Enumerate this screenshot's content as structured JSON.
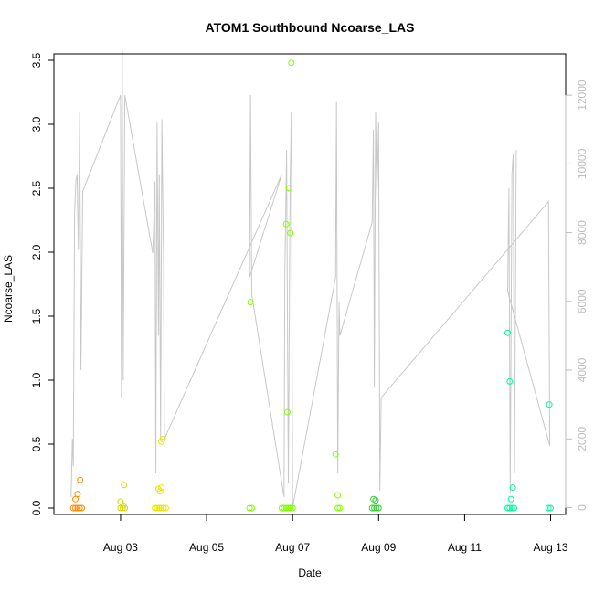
{
  "chart_data": {
    "type": "scatter",
    "title": "ATOM1 Southbound Ncoarse_LAS",
    "xlabel": "Date",
    "ylabel": "Ncoarse_LAS",
    "x_unit": "days in August",
    "xlim": [
      1.45,
      13.35
    ],
    "ylim": [
      -0.05,
      3.55
    ],
    "x_ticks": [
      {
        "value": 3,
        "label": "Aug 03"
      },
      {
        "value": 5,
        "label": "Aug 05"
      },
      {
        "value": 7,
        "label": "Aug 07"
      },
      {
        "value": 9,
        "label": "Aug 09"
      },
      {
        "value": 11,
        "label": "Aug 11"
      },
      {
        "value": 13,
        "label": "Aug 13"
      }
    ],
    "y_ticks": [
      0.0,
      0.5,
      1.0,
      1.5,
      2.0,
      2.5,
      3.0,
      3.5
    ],
    "y_tick_labels": [
      "0.0",
      "0.5",
      "1.0",
      "1.5",
      "2.0",
      "2.5",
      "3.0",
      "3.5"
    ],
    "y2_ticks": [
      0,
      2000,
      4000,
      6000,
      8000,
      10000,
      12000
    ],
    "y2_tick_labels": [
      "0",
      "2000",
      "4000",
      "6000",
      "8000",
      "10000",
      "12000"
    ],
    "y2lim": [
      -200,
      13200
    ],
    "grid": false,
    "series": [
      {
        "color": "#ff8c00",
        "points": [
          [
            1.9,
            0
          ],
          [
            1.95,
            0
          ],
          [
            2.0,
            0
          ],
          [
            2.05,
            0
          ],
          [
            2.1,
            0
          ],
          [
            1.95,
            0.07
          ],
          [
            2.0,
            0.11
          ],
          [
            2.06,
            0.22
          ]
        ]
      },
      {
        "color": "#d9d900",
        "points": [
          [
            3.0,
            0
          ],
          [
            3.05,
            0
          ],
          [
            3.1,
            0
          ],
          [
            3.0,
            0.05
          ],
          [
            3.06,
            0.02
          ],
          [
            3.08,
            0.18
          ]
        ]
      },
      {
        "color": "#e6e600",
        "points": [
          [
            3.8,
            0
          ],
          [
            3.85,
            0
          ],
          [
            3.9,
            0
          ],
          [
            3.95,
            0
          ],
          [
            4.0,
            0
          ],
          [
            4.05,
            0
          ],
          [
            3.88,
            0.15
          ],
          [
            3.92,
            0.13
          ],
          [
            3.95,
            0.16
          ],
          [
            3.95,
            0.52
          ],
          [
            3.98,
            0.54
          ]
        ]
      },
      {
        "color": "#7fff00",
        "points": [
          [
            6.0,
            0
          ],
          [
            6.05,
            0
          ],
          [
            6.02,
            1.61
          ],
          [
            6.75,
            0
          ],
          [
            6.8,
            0
          ],
          [
            6.85,
            0
          ],
          [
            6.9,
            0
          ],
          [
            6.95,
            0
          ],
          [
            7.0,
            0
          ],
          [
            6.85,
            2.22
          ],
          [
            6.92,
            2.5
          ],
          [
            6.95,
            2.15
          ],
          [
            6.88,
            0.75
          ],
          [
            6.97,
            3.48
          ],
          [
            8.0,
            0.42
          ],
          [
            8.05,
            0.1
          ],
          [
            8.05,
            0
          ],
          [
            8.1,
            0
          ]
        ]
      },
      {
        "color": "#32cd32",
        "points": [
          [
            8.85,
            0
          ],
          [
            8.9,
            0
          ],
          [
            8.95,
            0
          ],
          [
            9.0,
            0
          ],
          [
            8.88,
            0.07
          ],
          [
            8.93,
            0.06
          ]
        ]
      },
      {
        "color": "#00fa9a",
        "points": [
          [
            12.0,
            0
          ],
          [
            12.05,
            0
          ],
          [
            12.1,
            0
          ],
          [
            12.15,
            0
          ],
          [
            12.0,
            1.37
          ],
          [
            12.05,
            0.99
          ],
          [
            12.08,
            0.07
          ],
          [
            12.12,
            0.16
          ],
          [
            12.95,
            0
          ],
          [
            13.0,
            0
          ],
          [
            12.97,
            0.81
          ]
        ]
      }
    ],
    "overlay_line": {
      "axis": "right",
      "color": "#c8c8c8",
      "points": [
        [
          1.85,
          300
        ],
        [
          1.88,
          2000
        ],
        [
          1.9,
          1200
        ],
        [
          1.93,
          8500
        ],
        [
          1.96,
          9500
        ],
        [
          1.99,
          9700
        ],
        [
          2.02,
          7500
        ],
        [
          2.05,
          11500
        ],
        [
          2.08,
          4000
        ],
        [
          2.12,
          9200
        ],
        [
          3.0,
          12000
        ],
        [
          3.02,
          3200
        ],
        [
          3.04,
          13300
        ],
        [
          3.06,
          3700
        ],
        [
          3.1,
          12000
        ],
        [
          3.75,
          7400
        ],
        [
          3.8,
          9500
        ],
        [
          3.82,
          1000
        ],
        [
          3.85,
          11200
        ],
        [
          3.88,
          5000
        ],
        [
          3.9,
          9700
        ],
        [
          3.93,
          2000
        ],
        [
          3.96,
          11300
        ],
        [
          4.0,
          7000
        ],
        [
          4.02,
          2000
        ],
        [
          6.75,
          9700
        ],
        [
          6.0,
          6700
        ],
        [
          6.02,
          12000
        ],
        [
          6.05,
          6200
        ],
        [
          6.8,
          300
        ],
        [
          6.82,
          6800
        ],
        [
          6.86,
          10400
        ],
        [
          6.9,
          700
        ],
        [
          6.94,
          9200
        ],
        [
          6.97,
          11500
        ],
        [
          7.0,
          0
        ],
        [
          8.0,
          6700
        ],
        [
          8.02,
          11800
        ],
        [
          8.05,
          1000
        ],
        [
          8.08,
          6000
        ],
        [
          8.1,
          5000
        ],
        [
          8.85,
          8300
        ],
        [
          8.88,
          11000
        ],
        [
          8.9,
          3500
        ],
        [
          8.93,
          11500
        ],
        [
          8.96,
          9000
        ],
        [
          9.0,
          11200
        ],
        [
          9.03,
          500
        ],
        [
          9.06,
          3200
        ],
        [
          12.95,
          8900
        ],
        [
          12.98,
          1800
        ],
        [
          12.0,
          6300
        ],
        [
          12.03,
          9300
        ],
        [
          12.06,
          400
        ],
        [
          12.1,
          9700
        ],
        [
          12.13,
          10300
        ],
        [
          12.16,
          1000
        ],
        [
          12.2,
          10400
        ]
      ]
    }
  }
}
